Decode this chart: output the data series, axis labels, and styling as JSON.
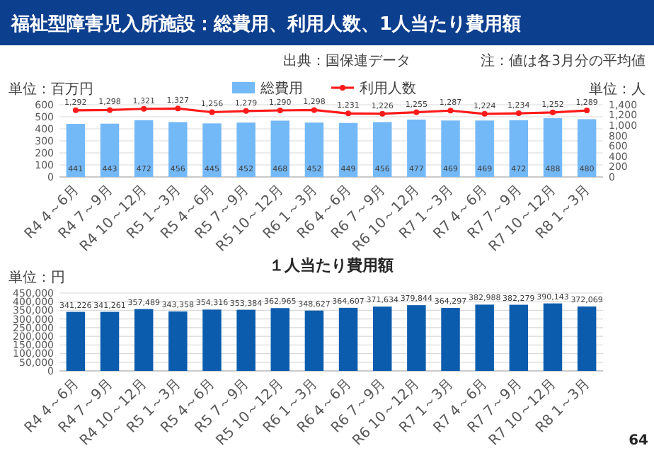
{
  "chart_data": [
    {
      "type": "bar",
      "title": "福祉型障害児入所施設：総費用、利用人数、1人当たり費用額",
      "annotations": [
        "出典：国保連データ",
        "注：値は各3月分の平均値"
      ],
      "ylabel": "単位：百万円",
      "y2label": "単位：人",
      "categories": [
        "R4\n4～6月",
        "R4\n7～9月",
        "R4\n10～12月",
        "R5\n1～3月",
        "R5\n4～6月",
        "R5\n7～9月",
        "R5\n10～12月",
        "R6\n1～3月",
        "R6\n4～6月",
        "R6\n7～9月",
        "R6\n10～12月",
        "R7\n1～3月",
        "R7\n4～6月",
        "R7\n7～9月",
        "R7\n10～12月",
        "R8\n1～3月"
      ],
      "series": [
        {
          "name": "総費用",
          "color": "#74b9f7",
          "values": [
            441,
            443,
            472,
            456,
            445,
            452,
            468,
            452,
            449,
            456,
            477,
            469,
            469,
            472,
            488,
            480
          ],
          "value_labels": [
            "441",
            "443",
            "472",
            "456",
            "445",
            "452",
            "468",
            "452",
            "449",
            "456",
            "477",
            "469",
            "469",
            "472",
            "488",
            "480"
          ]
        },
        {
          "name": "利用人数",
          "type": "line",
          "axis": "y2",
          "color": "#ff1a1a",
          "values": [
            1292,
            1298,
            1321,
            1327,
            1256,
            1279,
            1290,
            1298,
            1231,
            1226,
            1255,
            1287,
            1224,
            1234,
            1252,
            1289
          ],
          "value_labels": [
            "1,292",
            "1,298",
            "1,321",
            "1,327",
            "1,256",
            "1,279",
            "1,290",
            "1,298",
            "1,231",
            "1,226",
            "1,255",
            "1,287",
            "1,224",
            "1,234",
            "1,252",
            "1,289"
          ]
        }
      ],
      "ylim": [
        0,
        600
      ],
      "yticks": [
        0,
        100,
        200,
        300,
        400,
        500,
        600
      ],
      "y2lim": [
        0,
        1400
      ],
      "y2ticks": [
        0,
        {
          "value": 200,
          "label": "200"
        },
        {
          "value": 400,
          "label": "400"
        },
        {
          "value": 600,
          "label": "600"
        },
        {
          "value": 800,
          "label": "800"
        },
        {
          "value": 1000,
          "label": "1,000"
        },
        {
          "value": 1200,
          "label": "1,200"
        },
        {
          "value": 1400,
          "label": "1,400"
        }
      ],
      "grid": "y",
      "legend": "top",
      "marker": "circle"
    },
    {
      "type": "bar",
      "title": "１人当たり費用額",
      "ylabel": "単位：円",
      "annotations": [
        "64"
      ],
      "categories": [
        "R4\n4～6月",
        "R4\n7～9月",
        "R4\n10～12月",
        "R5\n1～3月",
        "R5\n4～6月",
        "R5\n7～9月",
        "R5\n10～12月",
        "R6\n1～3月",
        "R6\n4～6月",
        "R6\n7～9月",
        "R6\n10～12月",
        "R7\n1～3月",
        "R7\n4～6月",
        "R7\n7～9月",
        "R7\n10～12月",
        "R8\n1～3月"
      ],
      "series": [
        {
          "color": "#0b5cad",
          "values": [
            341226,
            341261,
            357489,
            343358,
            354316,
            353384,
            362965,
            348627,
            364607,
            371634,
            379844,
            364297,
            382988,
            382279,
            390143,
            372069
          ],
          "value_labels": [
            "341,226",
            "341,261",
            "357,489",
            "343,358",
            "354,316",
            "353,384",
            "362,965",
            "348,627",
            "364,607",
            "371,634",
            "379,844",
            "364,297",
            "382,988",
            "382,279",
            "390,143",
            "372,069"
          ]
        }
      ],
      "ylim": [
        0,
        450000
      ],
      "yticks": [
        0,
        {
          "value": 50000,
          "label": "50,000"
        },
        {
          "value": 100000,
          "label": "100,000"
        },
        {
          "value": 150000,
          "label": "150,000"
        },
        {
          "value": 200000,
          "label": "200,000"
        },
        {
          "value": 250000,
          "label": "250,000"
        },
        {
          "value": 300000,
          "label": "300,000"
        },
        {
          "value": 350000,
          "label": "350,000"
        },
        {
          "value": 400000,
          "label": "400,000"
        },
        {
          "value": 450000,
          "label": "450,000"
        }
      ],
      "grid": "y"
    }
  ]
}
